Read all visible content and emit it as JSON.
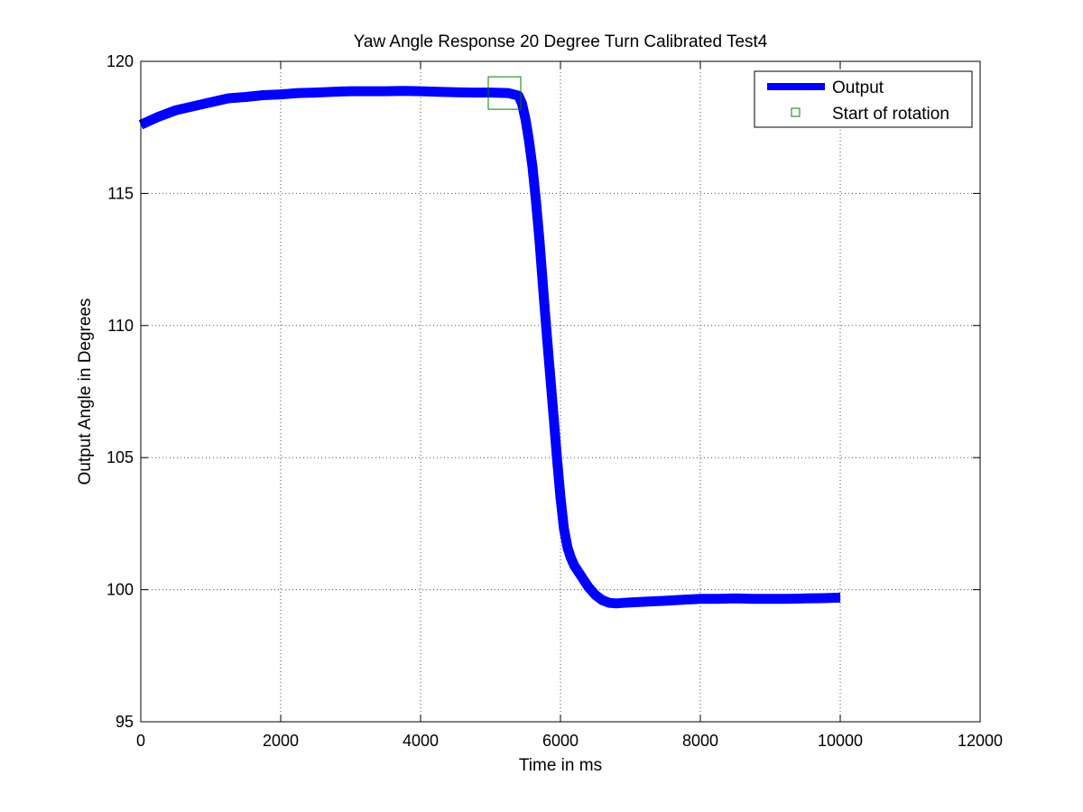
{
  "chart_data": {
    "type": "line",
    "title": "Yaw Angle Response 20 Degree Turn Calibrated Test4",
    "xlabel": "Time in ms",
    "ylabel": "Output Angle in Degrees",
    "xlim": [
      0,
      12000
    ],
    "ylim": [
      95,
      120
    ],
    "xticks": [
      0,
      2000,
      4000,
      6000,
      8000,
      10000,
      12000
    ],
    "yticks": [
      95,
      100,
      105,
      110,
      115,
      120
    ],
    "xtick_labels": [
      "0",
      "2000",
      "4000",
      "6000",
      "8000",
      "10000",
      "12000"
    ],
    "ytick_labels": [
      "95",
      "100",
      "105",
      "110",
      "115",
      "120"
    ],
    "grid": true,
    "legend_position": "top-right",
    "colors": {
      "output": "#0000ff",
      "marker": "#008000"
    },
    "series": [
      {
        "name": "Output",
        "style": "thick-line",
        "x": [
          0,
          250,
          500,
          750,
          1000,
          1250,
          1500,
          1750,
          2000,
          2250,
          2500,
          2750,
          3000,
          3250,
          3500,
          3750,
          4000,
          4250,
          4500,
          4750,
          5000,
          5250,
          5400,
          5450,
          5500,
          5550,
          5600,
          5650,
          5700,
          5750,
          5800,
          5850,
          5900,
          5950,
          6000,
          6050,
          6100,
          6150,
          6200,
          6300,
          6400,
          6500,
          6600,
          6700,
          6800,
          6900,
          7000,
          7250,
          7500,
          7750,
          8000,
          8250,
          8500,
          8750,
          9000,
          9250,
          9500,
          9750,
          10000
        ],
        "y": [
          117.6,
          117.9,
          118.15,
          118.3,
          118.45,
          118.6,
          118.65,
          118.72,
          118.75,
          118.8,
          118.82,
          118.85,
          118.87,
          118.87,
          118.87,
          118.88,
          118.87,
          118.85,
          118.83,
          118.82,
          118.82,
          118.8,
          118.7,
          118.4,
          117.8,
          117.0,
          116.0,
          114.7,
          113.2,
          111.5,
          109.8,
          108.2,
          106.6,
          105.0,
          103.5,
          102.3,
          101.6,
          101.2,
          100.9,
          100.5,
          100.1,
          99.8,
          99.6,
          99.5,
          99.48,
          99.5,
          99.52,
          99.55,
          99.58,
          99.62,
          99.65,
          99.65,
          99.67,
          99.65,
          99.65,
          99.65,
          99.67,
          99.68,
          99.7
        ]
      },
      {
        "name": "Start of rotation",
        "style": "square-marker",
        "x": [
          5200
        ],
        "y": [
          118.8
        ]
      }
    ]
  }
}
